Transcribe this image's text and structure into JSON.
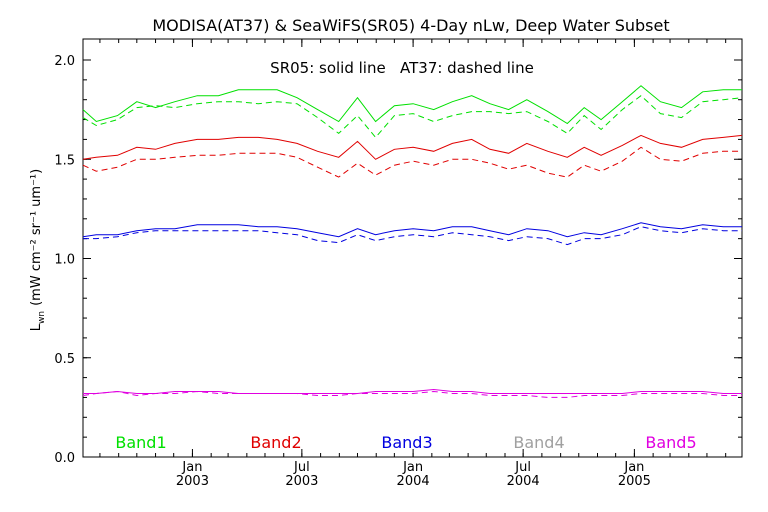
{
  "chart_data": {
    "type": "line",
    "title": "MODISA(AT37) & SeaWiFS(SR05) 4-Day nLw, Deep Water Subset",
    "subtitle": "SR05: solid line   AT37: dashed line",
    "ylabel": "L",
    "ylabel_sub": "wn",
    "ylabel_units": "(mW cm⁻² sr⁻¹ um⁻¹)",
    "ylim": [
      0.0,
      2.0
    ],
    "yticks": [
      "0.0",
      "0.5",
      "1.0",
      "1.5",
      "2.0"
    ],
    "yticks_values": [
      0.0,
      0.5,
      1.0,
      1.5,
      2.0
    ],
    "xlim": [
      "2002-07-04",
      "2005-06-28"
    ],
    "xticks": [
      {
        "date": "2003-01-01",
        "month": "Jan",
        "year": "2003"
      },
      {
        "date": "2003-07-01",
        "month": "Jul",
        "year": "2003"
      },
      {
        "date": "2004-01-01",
        "month": "Jan",
        "year": "2004"
      },
      {
        "date": "2004-07-01",
        "month": "Jul",
        "year": "2004"
      },
      {
        "date": "2005-01-01",
        "month": "Jan",
        "year": "2005"
      }
    ],
    "x": [
      "2002-07-04",
      "2002-07-26",
      "2002-08-30",
      "2002-10-01",
      "2002-11-01",
      "2002-12-03",
      "2003-01-09",
      "2003-02-13",
      "2003-03-18",
      "2003-04-20",
      "2003-05-21",
      "2003-06-23",
      "2003-07-27",
      "2003-08-31",
      "2003-10-01",
      "2003-10-31",
      "2003-12-01",
      "2004-01-01",
      "2004-02-04",
      "2004-03-06",
      "2004-04-07",
      "2004-05-07",
      "2004-06-07",
      "2004-07-07",
      "2004-08-11",
      "2004-09-12",
      "2004-10-10",
      "2004-11-07",
      "2004-12-12",
      "2005-01-12",
      "2005-02-13",
      "2005-03-20",
      "2005-04-24",
      "2005-05-28",
      "2005-06-28"
    ],
    "legend": [
      "Band1",
      "Band2",
      "Band3",
      "Band4",
      "Band5"
    ],
    "series": [
      {
        "name": "Band1",
        "style": "solid",
        "color": "#00e000",
        "values": [
          1.75,
          1.69,
          1.72,
          1.79,
          1.76,
          1.79,
          1.82,
          1.82,
          1.85,
          1.85,
          1.85,
          1.81,
          1.75,
          1.69,
          1.81,
          1.69,
          1.77,
          1.78,
          1.75,
          1.79,
          1.82,
          1.78,
          1.75,
          1.8,
          1.74,
          1.68,
          1.76,
          1.7,
          1.79,
          1.87,
          1.79,
          1.76,
          1.84,
          1.85,
          1.85
        ]
      },
      {
        "name": "Band1",
        "style": "dashed",
        "color": "#00e000",
        "values": [
          1.71,
          1.67,
          1.7,
          1.76,
          1.77,
          1.76,
          1.78,
          1.79,
          1.79,
          1.78,
          1.79,
          1.78,
          1.71,
          1.63,
          1.72,
          1.61,
          1.72,
          1.73,
          1.69,
          1.72,
          1.74,
          1.74,
          1.73,
          1.74,
          1.69,
          1.63,
          1.72,
          1.65,
          1.75,
          1.82,
          1.73,
          1.71,
          1.79,
          1.8,
          1.81
        ]
      },
      {
        "name": "Band2",
        "style": "solid",
        "color": "#e00000",
        "values": [
          1.5,
          1.51,
          1.52,
          1.56,
          1.55,
          1.58,
          1.6,
          1.6,
          1.61,
          1.61,
          1.6,
          1.58,
          1.54,
          1.51,
          1.59,
          1.5,
          1.55,
          1.56,
          1.54,
          1.58,
          1.6,
          1.55,
          1.53,
          1.58,
          1.54,
          1.51,
          1.56,
          1.52,
          1.57,
          1.62,
          1.58,
          1.56,
          1.6,
          1.61,
          1.62
        ]
      },
      {
        "name": "Band2",
        "style": "dashed",
        "color": "#e00000",
        "values": [
          1.47,
          1.44,
          1.46,
          1.5,
          1.5,
          1.51,
          1.52,
          1.52,
          1.53,
          1.53,
          1.53,
          1.51,
          1.46,
          1.41,
          1.48,
          1.42,
          1.47,
          1.49,
          1.47,
          1.5,
          1.5,
          1.48,
          1.45,
          1.47,
          1.43,
          1.41,
          1.47,
          1.44,
          1.49,
          1.56,
          1.5,
          1.49,
          1.53,
          1.54,
          1.54
        ]
      },
      {
        "name": "Band3",
        "style": "solid",
        "color": "#0000e0",
        "values": [
          1.11,
          1.12,
          1.12,
          1.14,
          1.15,
          1.15,
          1.17,
          1.17,
          1.17,
          1.16,
          1.16,
          1.15,
          1.13,
          1.11,
          1.15,
          1.12,
          1.14,
          1.15,
          1.14,
          1.16,
          1.16,
          1.14,
          1.12,
          1.15,
          1.14,
          1.11,
          1.13,
          1.12,
          1.15,
          1.18,
          1.16,
          1.15,
          1.17,
          1.16,
          1.16
        ]
      },
      {
        "name": "Band3",
        "style": "dashed",
        "color": "#0000e0",
        "values": [
          1.1,
          1.1,
          1.11,
          1.13,
          1.14,
          1.14,
          1.14,
          1.14,
          1.14,
          1.14,
          1.13,
          1.12,
          1.09,
          1.08,
          1.12,
          1.09,
          1.11,
          1.12,
          1.11,
          1.13,
          1.12,
          1.11,
          1.09,
          1.11,
          1.1,
          1.07,
          1.1,
          1.1,
          1.12,
          1.16,
          1.14,
          1.13,
          1.15,
          1.14,
          1.14
        ]
      },
      {
        "name": "Band5",
        "style": "solid",
        "color": "#e000e0",
        "values": [
          0.32,
          0.32,
          0.33,
          0.32,
          0.32,
          0.33,
          0.33,
          0.33,
          0.32,
          0.32,
          0.32,
          0.32,
          0.32,
          0.32,
          0.32,
          0.33,
          0.33,
          0.33,
          0.34,
          0.33,
          0.33,
          0.32,
          0.32,
          0.32,
          0.32,
          0.32,
          0.32,
          0.32,
          0.32,
          0.33,
          0.33,
          0.33,
          0.33,
          0.32,
          0.32
        ]
      },
      {
        "name": "Band5",
        "style": "dashed",
        "color": "#e000e0",
        "values": [
          0.31,
          0.32,
          0.33,
          0.31,
          0.32,
          0.32,
          0.33,
          0.32,
          0.32,
          0.32,
          0.32,
          0.32,
          0.31,
          0.31,
          0.32,
          0.32,
          0.32,
          0.32,
          0.33,
          0.32,
          0.32,
          0.31,
          0.31,
          0.31,
          0.3,
          0.3,
          0.31,
          0.31,
          0.31,
          0.32,
          0.32,
          0.32,
          0.32,
          0.31,
          0.31
        ]
      }
    ],
    "legend_colors": {
      "Band1": "#00e000",
      "Band2": "#e00000",
      "Band3": "#0000e0",
      "Band4": "#a0a0a0",
      "Band5": "#e000e0"
    },
    "grid": false,
    "legend_position": "bottom"
  }
}
